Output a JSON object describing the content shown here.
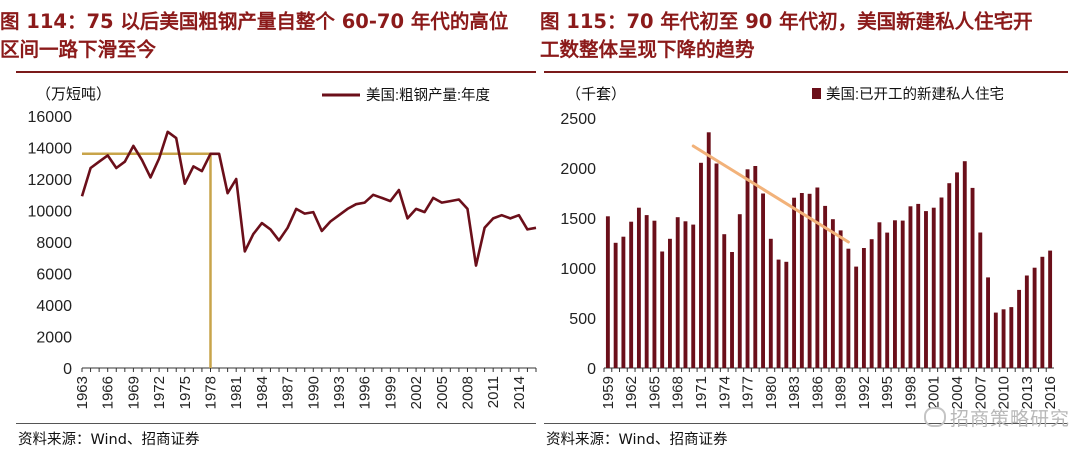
{
  "figure_left": {
    "title_line1": "图 114：75 以后美国粗钢产量自整个 60-70 年代的高位",
    "title_line2": "区间一路下滑至今",
    "source": "资料来源：Wind、招商证券"
  },
  "figure_right": {
    "title_line1": "图 115：70 年代初至 90 年代初，美国新建私人住宅开",
    "title_line2": "工数整体呈现下降的趋势",
    "source": "资料来源：Wind、招商证券"
  },
  "watermark": "招商策略研究",
  "colors": {
    "title": "#8b1a1a",
    "series": "#6b0f1a",
    "highlight": "#c8a44a",
    "trend": "#f2b27a"
  },
  "chart_data": [
    {
      "type": "line",
      "unit_label": "（万短吨）",
      "legend": "美国:粗钢产量:年度",
      "xlabel": "",
      "ylabel": "",
      "ylim": [
        0,
        16000
      ],
      "yticks": [
        0,
        2000,
        4000,
        6000,
        8000,
        10000,
        12000,
        14000,
        16000
      ],
      "x_tick_labels": [
        "1963",
        "1966",
        "1969",
        "1972",
        "1975",
        "1978",
        "1981",
        "1984",
        "1987",
        "1990",
        "1993",
        "1996",
        "1999",
        "2002",
        "2005",
        "2008",
        "2011",
        "2014"
      ],
      "x": [
        1963,
        1964,
        1965,
        1966,
        1967,
        1968,
        1969,
        1970,
        1971,
        1972,
        1973,
        1974,
        1975,
        1976,
        1977,
        1978,
        1979,
        1980,
        1981,
        1982,
        1983,
        1984,
        1985,
        1986,
        1987,
        1988,
        1989,
        1990,
        1991,
        1992,
        1993,
        1994,
        1995,
        1996,
        1997,
        1998,
        1999,
        2000,
        2001,
        2002,
        2003,
        2004,
        2005,
        2006,
        2007,
        2008,
        2009,
        2010,
        2011,
        2012,
        2013,
        2014,
        2015,
        2016
      ],
      "values": [
        10900,
        12700,
        13100,
        13500,
        12700,
        13100,
        14100,
        13200,
        12100,
        13300,
        15000,
        14600,
        11700,
        12800,
        12500,
        13600,
        13600,
        11100,
        12000,
        7400,
        8500,
        9200,
        8800,
        8100,
        8900,
        10100,
        9800,
        9900,
        8700,
        9300,
        9700,
        10100,
        10400,
        10500,
        11000,
        10800,
        10600,
        11300,
        9500,
        10100,
        9900,
        10800,
        10500,
        10600,
        10700,
        10100,
        6500,
        8900,
        9500,
        9700,
        9500,
        9700,
        8800,
        8900
      ],
      "annotations": {
        "peak_level": 13600,
        "peak_year": 1978
      }
    },
    {
      "type": "bar",
      "unit_label": "（千套）",
      "legend": "美国:已开工的新建私人住宅",
      "xlabel": "",
      "ylabel": "",
      "ylim": [
        0,
        2500
      ],
      "yticks": [
        0,
        500,
        1000,
        1500,
        2000,
        2500
      ],
      "x_tick_labels": [
        "1959",
        "1962",
        "1965",
        "1968",
        "1971",
        "1974",
        "1977",
        "1980",
        "1983",
        "1986",
        "1989",
        "1992",
        "1995",
        "1998",
        "2001",
        "2004",
        "2007",
        "2010",
        "2013",
        "2016"
      ],
      "categories": [
        1959,
        1960,
        1961,
        1962,
        1963,
        1964,
        1965,
        1966,
        1967,
        1968,
        1969,
        1970,
        1971,
        1972,
        1973,
        1974,
        1975,
        1976,
        1977,
        1978,
        1979,
        1980,
        1981,
        1982,
        1983,
        1984,
        1985,
        1986,
        1987,
        1988,
        1989,
        1990,
        1991,
        1992,
        1993,
        1994,
        1995,
        1996,
        1997,
        1998,
        1999,
        2000,
        2001,
        2002,
        2003,
        2004,
        2005,
        2006,
        2007,
        2008,
        2009,
        2010,
        2011,
        2012,
        2013,
        2014,
        2015,
        2016
      ],
      "values": [
        1517,
        1252,
        1313,
        1463,
        1603,
        1529,
        1473,
        1165,
        1292,
        1508,
        1467,
        1434,
        2052,
        2357,
        2045,
        1338,
        1160,
        1538,
        1987,
        2020,
        1745,
        1292,
        1084,
        1062,
        1703,
        1750,
        1742,
        1805,
        1621,
        1488,
        1376,
        1193,
        1014,
        1200,
        1288,
        1457,
        1354,
        1477,
        1474,
        1617,
        1641,
        1569,
        1603,
        1705,
        1848,
        1956,
        2068,
        1801,
        1355,
        906,
        554,
        587,
        609,
        781,
        925,
        1003,
        1112,
        1174
      ],
      "trendline": {
        "from": {
          "x": 1970,
          "y": 2220
        },
        "to": {
          "x": 1990,
          "y": 1260
        }
      }
    }
  ]
}
